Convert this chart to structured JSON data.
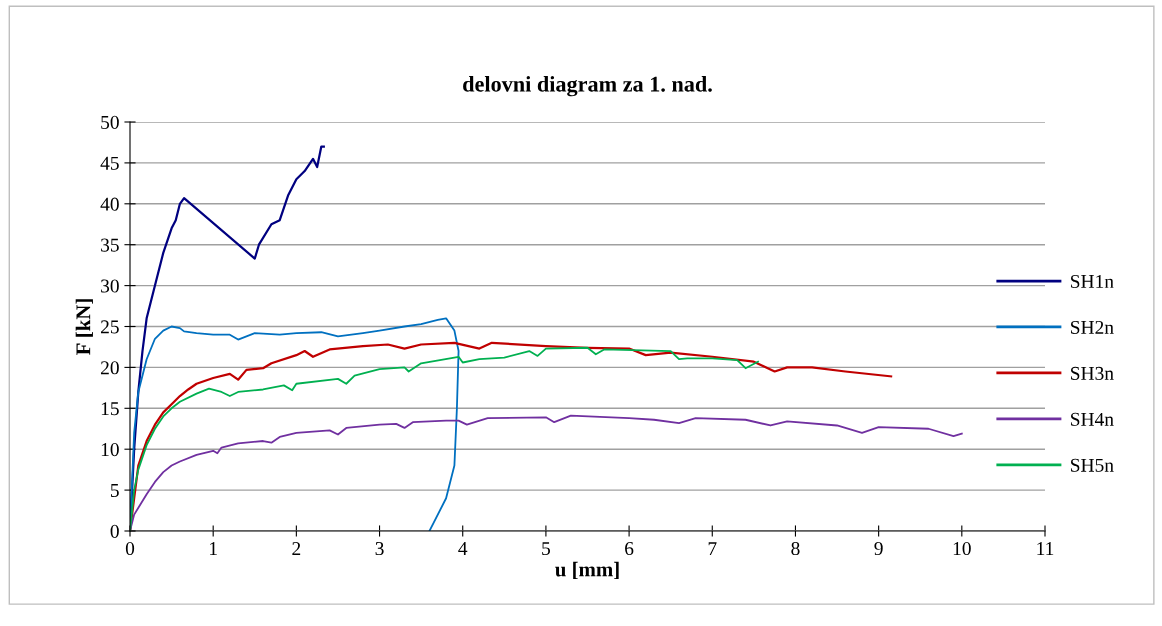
{
  "chart_data": {
    "type": "line",
    "title": "delovni diagram za 1. nad.",
    "xlabel": "u [mm]",
    "ylabel": "F [kN]",
    "xlim": [
      0,
      11
    ],
    "xticks": [
      0,
      1,
      2,
      3,
      4,
      5,
      6,
      7,
      8,
      9,
      10,
      11
    ],
    "ylim": [
      0,
      50
    ],
    "yticks": [
      0,
      5,
      10,
      15,
      20,
      25,
      30,
      35,
      40,
      45,
      50
    ],
    "grid": "y",
    "legend": "right",
    "marker": "none",
    "line_style": "solid",
    "series": [
      {
        "name": "SH1n",
        "color": "#000080",
        "x": [
          0,
          0.05,
          0.1,
          0.15,
          0.2,
          0.3,
          0.4,
          0.5,
          0.55,
          0.6,
          0.65,
          1.5,
          1.55,
          1.7,
          1.8,
          1.9,
          2.0,
          2.1,
          2.2,
          2.25,
          2.3,
          2.33
        ],
        "values": [
          0,
          10,
          17,
          22,
          26,
          30,
          34,
          37,
          38,
          40,
          40.7,
          33.3,
          35,
          37.5,
          38,
          41,
          43,
          44,
          45.5,
          44.5,
          47,
          47
        ]
      },
      {
        "name": "SH2n",
        "color": "#0070c0",
        "x": [
          0,
          0.05,
          0.1,
          0.2,
          0.3,
          0.4,
          0.5,
          0.6,
          0.65,
          0.8,
          1.0,
          1.2,
          1.3,
          1.5,
          1.8,
          2.0,
          2.3,
          2.5,
          2.8,
          3.0,
          3.3,
          3.5,
          3.7,
          3.8,
          3.9,
          3.95,
          3.93,
          3.9,
          3.8,
          3.6
        ],
        "values": [
          0,
          12,
          17,
          21,
          23.5,
          24.5,
          25,
          24.8,
          24.4,
          24.2,
          24,
          24,
          23.4,
          24.2,
          24,
          24.2,
          24.3,
          23.8,
          24.2,
          24.5,
          25,
          25.3,
          25.8,
          26,
          24.5,
          22,
          15,
          8,
          4,
          0
        ]
      },
      {
        "name": "SH3n",
        "color": "#c00000",
        "x": [
          0,
          0.1,
          0.2,
          0.3,
          0.4,
          0.5,
          0.6,
          0.7,
          0.8,
          1.0,
          1.2,
          1.3,
          1.4,
          1.6,
          1.7,
          2.0,
          2.1,
          2.2,
          2.4,
          2.8,
          3.1,
          3.3,
          3.5,
          3.9,
          4.2,
          4.35,
          5,
          5.5,
          6,
          6.2,
          6.5,
          7,
          7.5,
          7.75,
          7.9,
          8.2,
          8.6,
          9.15
        ],
        "values": [
          0,
          8,
          11,
          13,
          14.5,
          15.5,
          16.5,
          17.3,
          18,
          18.7,
          19.2,
          18.5,
          19.7,
          19.9,
          20.5,
          21.5,
          22,
          21.3,
          22.2,
          22.6,
          22.8,
          22.3,
          22.8,
          23,
          22.3,
          23,
          22.6,
          22.4,
          22.3,
          21.5,
          21.8,
          21.3,
          20.7,
          19.5,
          20,
          20,
          19.5,
          18.9
        ]
      },
      {
        "name": "SH4n",
        "color": "#7030a0",
        "x": [
          0,
          0.05,
          0.2,
          0.3,
          0.4,
          0.5,
          0.6,
          0.8,
          1.0,
          1.05,
          1.1,
          1.3,
          1.6,
          1.7,
          1.8,
          2.0,
          2.4,
          2.5,
          2.6,
          3.0,
          3.2,
          3.3,
          3.4,
          3.8,
          3.95,
          4.05,
          4.3,
          5.0,
          5.1,
          5.3,
          6.0,
          6.3,
          6.6,
          6.8,
          7.4,
          7.7,
          7.9,
          8.5,
          8.8,
          9.0,
          9.6,
          9.9,
          10.0
        ],
        "values": [
          0,
          2,
          4.5,
          6,
          7.2,
          8,
          8.5,
          9.3,
          9.8,
          9.5,
          10.2,
          10.7,
          11,
          10.8,
          11.5,
          12,
          12.3,
          11.8,
          12.6,
          13,
          13.1,
          12.6,
          13.3,
          13.5,
          13.5,
          13,
          13.8,
          13.9,
          13.3,
          14.1,
          13.8,
          13.6,
          13.2,
          13.8,
          13.6,
          12.9,
          13.4,
          12.9,
          12,
          12.7,
          12.5,
          11.6,
          11.9
        ]
      },
      {
        "name": "SH5n",
        "color": "#00b050",
        "x": [
          0,
          0.05,
          0.1,
          0.2,
          0.3,
          0.4,
          0.5,
          0.6,
          0.8,
          0.95,
          1.1,
          1.2,
          1.3,
          1.6,
          1.85,
          1.95,
          2.0,
          2.5,
          2.6,
          2.7,
          3.0,
          3.3,
          3.35,
          3.5,
          3.95,
          4.0,
          4.2,
          4.5,
          4.8,
          4.9,
          5.0,
          5.5,
          5.6,
          5.7,
          6.5,
          6.6,
          6.7,
          7.0,
          7.3,
          7.4,
          7.55
        ],
        "values": [
          0,
          5,
          7.5,
          10.5,
          12.5,
          14,
          15,
          15.8,
          16.8,
          17.4,
          17,
          16.5,
          17,
          17.3,
          17.8,
          17.2,
          18,
          18.6,
          18,
          19,
          19.8,
          20,
          19.5,
          20.5,
          21.3,
          20.6,
          21,
          21.2,
          22,
          21.4,
          22.3,
          22.4,
          21.6,
          22.2,
          22,
          21,
          21.1,
          21.1,
          20.9,
          19.9,
          20.7
        ]
      }
    ]
  }
}
